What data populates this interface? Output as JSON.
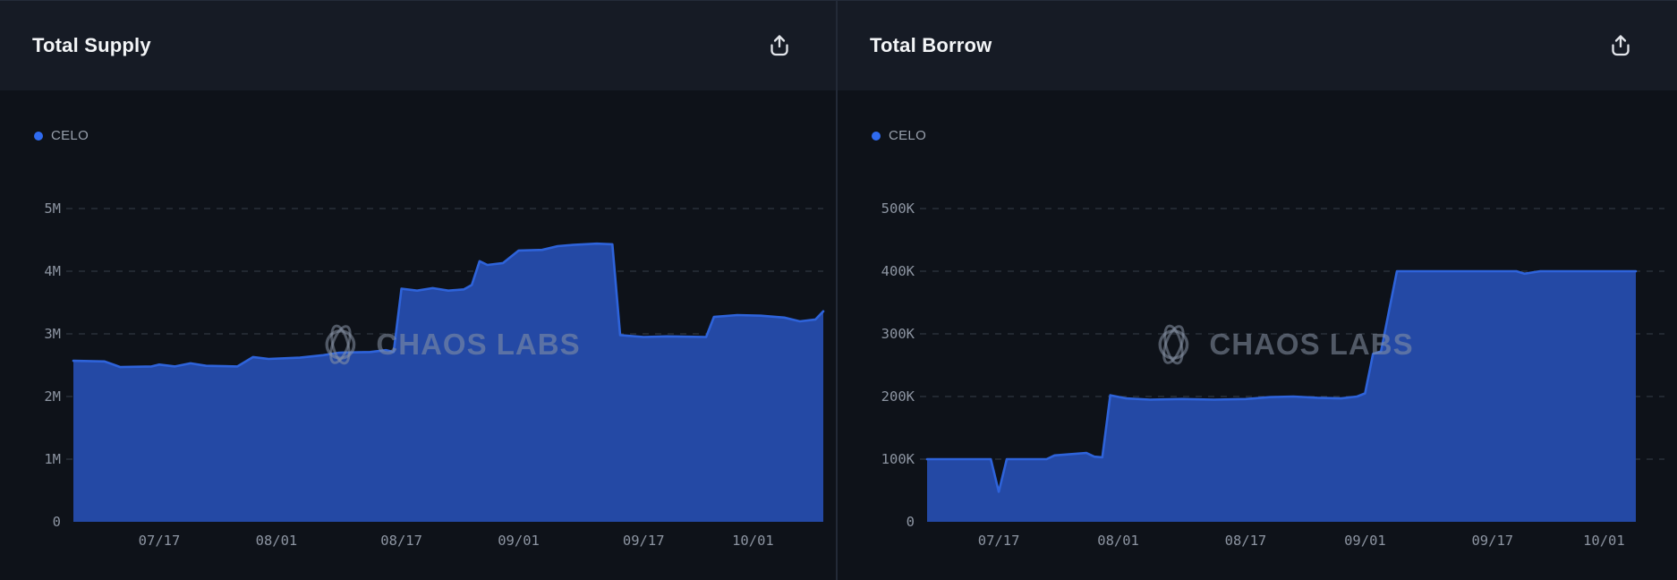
{
  "page": {
    "background": "#0e1219",
    "header_background": "#161b25",
    "divider_color": "#232a37",
    "accent_line_color": "#2e63da",
    "area_fill_color": "#2449a5",
    "grid_color": "#4a5260",
    "axis_label_color": "#8d95a2",
    "title_color": "#f3f5f7",
    "watermark_color": "#8993a5",
    "export_icon": "share-export-icon"
  },
  "chart_data": [
    {
      "type": "area",
      "title": "Total Supply",
      "legend": [
        "CELO"
      ],
      "legend_dot_color": "#2f6bf0",
      "legend_position": "top-left",
      "watermark": "CHAOS LABS",
      "grid": "horizontal dashed",
      "unit": "M",
      "y_tick_interval": 1,
      "ylim": [
        0,
        5
      ],
      "y_ticks": [
        {
          "label": "5M",
          "value": 5
        },
        {
          "label": "4M",
          "value": 4
        },
        {
          "label": "3M",
          "value": 3
        },
        {
          "label": "2M",
          "value": 2
        },
        {
          "label": "1M",
          "value": 1
        },
        {
          "label": "0",
          "value": 0
        }
      ],
      "x_ticks": [
        "07/17",
        "08/01",
        "08/17",
        "09/01",
        "09/17",
        "10/01"
      ],
      "x_domain": [
        "07/06",
        "10/10"
      ],
      "series": [
        {
          "name": "CELO",
          "points": [
            [
              "07/06",
              2.57
            ],
            [
              "07/10",
              2.56
            ],
            [
              "07/12",
              2.47
            ],
            [
              "07/16",
              2.48
            ],
            [
              "07/17",
              2.51
            ],
            [
              "07/19",
              2.48
            ],
            [
              "07/21",
              2.53
            ],
            [
              "07/23",
              2.49
            ],
            [
              "07/27",
              2.48
            ],
            [
              "07/29",
              2.63
            ],
            [
              "07/31",
              2.6
            ],
            [
              "08/04",
              2.62
            ],
            [
              "08/07",
              2.66
            ],
            [
              "08/09",
              2.7
            ],
            [
              "08/13",
              2.71
            ],
            [
              "08/15",
              2.74
            ],
            [
              "08/16",
              2.71
            ],
            [
              "08/17",
              3.72
            ],
            [
              "08/19",
              3.69
            ],
            [
              "08/21",
              3.73
            ],
            [
              "08/23",
              3.69
            ],
            [
              "08/25",
              3.71
            ],
            [
              "08/26",
              3.78
            ],
            [
              "08/27",
              4.16
            ],
            [
              "08/28",
              4.1
            ],
            [
              "08/30",
              4.13
            ],
            [
              "09/01",
              4.33
            ],
            [
              "09/04",
              4.34
            ],
            [
              "09/06",
              4.4
            ],
            [
              "09/08",
              4.42
            ],
            [
              "09/11",
              4.44
            ],
            [
              "09/13",
              4.43
            ],
            [
              "09/14",
              2.98
            ],
            [
              "09/17",
              2.95
            ],
            [
              "09/20",
              2.96
            ],
            [
              "09/25",
              2.95
            ],
            [
              "09/26",
              3.27
            ],
            [
              "09/29",
              3.3
            ],
            [
              "10/02",
              3.29
            ],
            [
              "10/05",
              3.26
            ],
            [
              "10/07",
              3.2
            ],
            [
              "10/09",
              3.23
            ],
            [
              "10/10",
              3.36
            ]
          ]
        }
      ]
    },
    {
      "type": "area",
      "title": "Total Borrow",
      "legend": [
        "CELO"
      ],
      "legend_dot_color": "#2f6bf0",
      "legend_position": "top-left",
      "watermark": "CHAOS LABS",
      "grid": "horizontal dashed",
      "unit": "K",
      "y_tick_interval": 100,
      "ylim": [
        0,
        500
      ],
      "y_ticks": [
        {
          "label": "500K",
          "value": 500
        },
        {
          "label": "400K",
          "value": 400
        },
        {
          "label": "300K",
          "value": 300
        },
        {
          "label": "200K",
          "value": 200
        },
        {
          "label": "100K",
          "value": 100
        },
        {
          "label": "0",
          "value": 0
        }
      ],
      "x_ticks": [
        "07/17",
        "08/01",
        "08/17",
        "09/01",
        "09/17",
        "10/01"
      ],
      "x_domain": [
        "07/08",
        "10/05"
      ],
      "series": [
        {
          "name": "CELO",
          "points": [
            [
              "07/08",
              100
            ],
            [
              "07/16",
              100
            ],
            [
              "07/17",
              48
            ],
            [
              "07/18",
              100
            ],
            [
              "07/23",
              100
            ],
            [
              "07/24",
              106
            ],
            [
              "07/26",
              108
            ],
            [
              "07/28",
              110
            ],
            [
              "07/29",
              104
            ],
            [
              "07/30",
              103
            ],
            [
              "07/31",
              202
            ],
            [
              "08/02",
              197
            ],
            [
              "08/05",
              195
            ],
            [
              "08/09",
              196
            ],
            [
              "08/13",
              195
            ],
            [
              "08/17",
              196
            ],
            [
              "08/20",
              199
            ],
            [
              "08/23",
              200
            ],
            [
              "08/26",
              198
            ],
            [
              "08/29",
              197
            ],
            [
              "08/31",
              200
            ],
            [
              "09/01",
              205
            ],
            [
              "09/02",
              268
            ],
            [
              "09/03",
              272
            ],
            [
              "09/05",
              400
            ],
            [
              "09/10",
              400
            ],
            [
              "09/15",
              400
            ],
            [
              "09/20",
              400
            ],
            [
              "09/21",
              396
            ],
            [
              "09/23",
              400
            ],
            [
              "10/04",
              400
            ],
            [
              "10/05",
              400
            ]
          ]
        }
      ]
    }
  ]
}
